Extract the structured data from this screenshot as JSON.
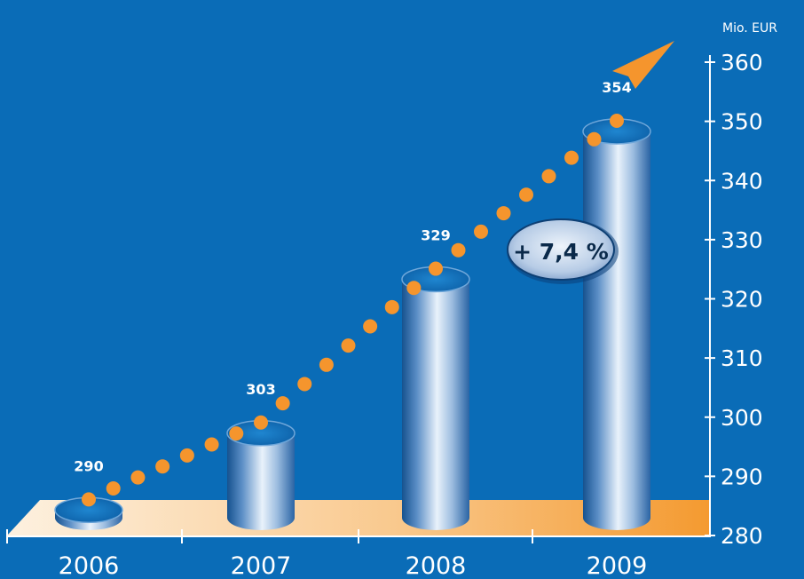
{
  "chart_data": {
    "type": "bar",
    "categories": [
      "2006",
      "2007",
      "2008",
      "2009"
    ],
    "values": [
      290,
      303,
      329,
      354
    ],
    "data_labels": [
      "290",
      "303",
      "329",
      "354"
    ],
    "unit_label": "Mio. EUR",
    "y_ticks": [
      "280",
      "290",
      "300",
      "310",
      "320",
      "330",
      "340",
      "350",
      "360"
    ],
    "ylim": [
      280,
      360
    ],
    "annotation": "+ 7,4 %",
    "grid": false,
    "y_axis_position": "right",
    "bar_style": "3d-cylinder",
    "trend_line": "dotted-arrow",
    "colors": {
      "background": "#0a6cb7",
      "dots": "#f5952d",
      "arrow": "#f5952d",
      "axis": "#ffffff",
      "badge_text": "#0b2a4a"
    }
  }
}
